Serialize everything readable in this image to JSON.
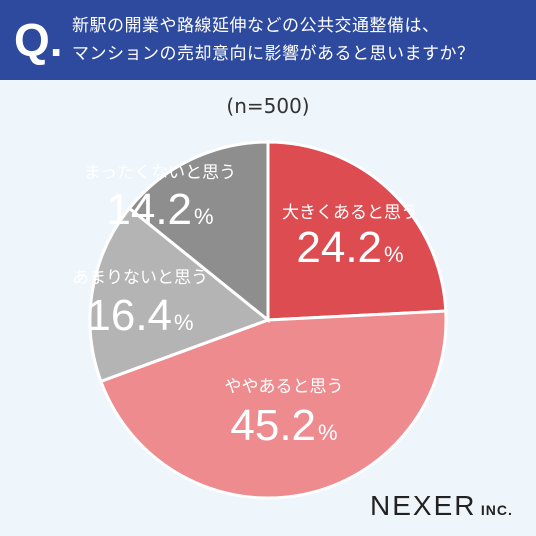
{
  "header": {
    "q_mark": "Q.",
    "question_line1": "新駅の開業や路線延伸などの公共交通整備は、",
    "question_line2": "マンションの売却意向に影響があると思いますか？"
  },
  "sample_label": "(n=500)",
  "brand": {
    "name": "NEXER",
    "suffix": "INC."
  },
  "colors": {
    "header_bg": "#2e4a9e",
    "page_bg": "#eef5fb",
    "slice_1": "#dc4c50",
    "slice_2": "#ee8b8e",
    "slice_3": "#b4b4b4",
    "slice_4": "#8e8e8e"
  },
  "chart_data": {
    "type": "pie",
    "categories": [
      "大きくあると思う",
      "ややあると思う",
      "あまりないと思う",
      "まったくないと思う"
    ],
    "values": [
      24.2,
      45.2,
      16.4,
      14.2
    ],
    "value_labels": [
      "24.2",
      "45.2",
      "16.4",
      "14.2"
    ],
    "unit": "%",
    "start_angle": "12 o'clock",
    "direction": "clockwise"
  }
}
